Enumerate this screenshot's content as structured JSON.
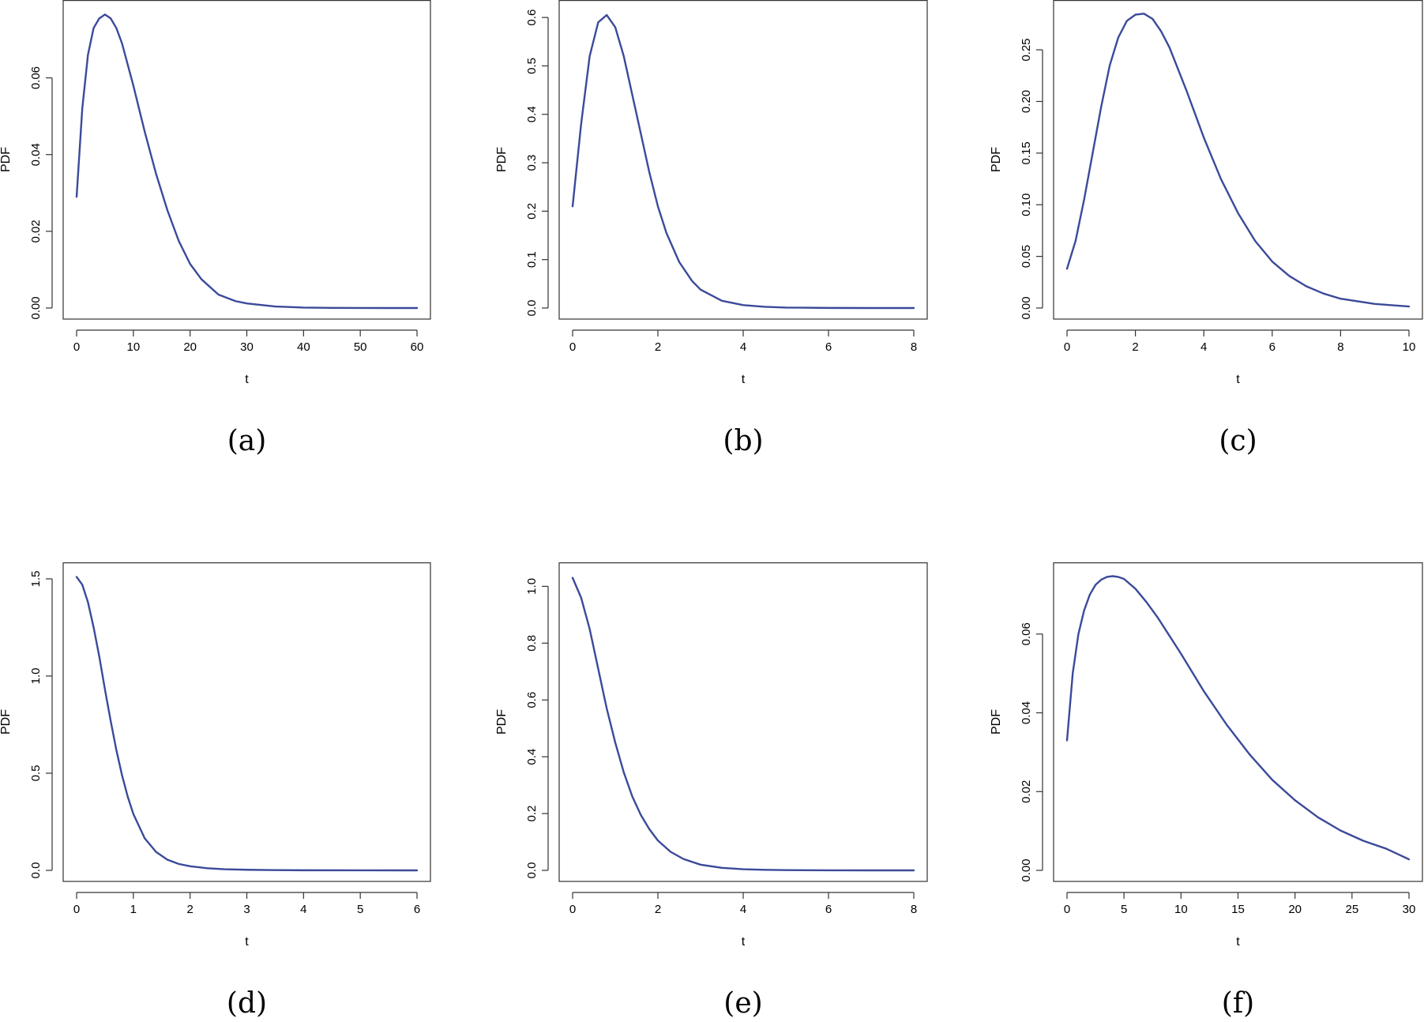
{
  "colors": {
    "curve": "#3b4a9a",
    "axis": "#333333"
  },
  "chart_data": [
    {
      "type": "line",
      "caption": "(a)",
      "xlabel": "t",
      "ylabel": "PDF",
      "xlim": [
        0,
        60
      ],
      "ylim": [
        0,
        0.077
      ],
      "xticks": [
        0,
        10,
        20,
        30,
        40,
        50,
        60
      ],
      "yticks": [
        0,
        0.02,
        0.04,
        0.06
      ],
      "xtick_labels": [
        "0",
        "10",
        "20",
        "30",
        "40",
        "50",
        "60"
      ],
      "ytick_labels": [
        "0.00",
        "0.02",
        "0.04",
        "0.06"
      ],
      "series": [
        {
          "x": [
            0,
            1,
            2,
            3,
            4,
            5,
            6,
            7,
            8,
            10,
            12,
            14,
            16,
            18,
            20,
            22,
            25,
            28,
            30,
            35,
            40,
            45,
            50,
            55,
            60
          ],
          "y": [
            0.029,
            0.052,
            0.066,
            0.073,
            0.0755,
            0.0765,
            0.0755,
            0.073,
            0.069,
            0.058,
            0.046,
            0.035,
            0.0255,
            0.0175,
            0.0115,
            0.0075,
            0.0035,
            0.0018,
            0.0012,
            0.0004,
            0.00012,
            4e-05,
            1e-05,
            0.0,
            0.0
          ]
        }
      ]
    },
    {
      "type": "line",
      "caption": "(b)",
      "xlabel": "t",
      "ylabel": "PDF",
      "xlim": [
        0,
        8
      ],
      "ylim": [
        0,
        0.61
      ],
      "xticks": [
        0,
        2,
        4,
        6,
        8
      ],
      "yticks": [
        0,
        0.1,
        0.2,
        0.3,
        0.4,
        0.5,
        0.6
      ],
      "xtick_labels": [
        "0",
        "2",
        "4",
        "6",
        "8"
      ],
      "ytick_labels": [
        "0.0",
        "0.1",
        "0.2",
        "0.3",
        "0.4",
        "0.5",
        "0.6"
      ],
      "series": [
        {
          "x": [
            0,
            0.2,
            0.4,
            0.6,
            0.8,
            1.0,
            1.2,
            1.4,
            1.6,
            1.8,
            2.0,
            2.2,
            2.5,
            2.8,
            3.0,
            3.5,
            4.0,
            4.5,
            5,
            6,
            7,
            8
          ],
          "y": [
            0.21,
            0.38,
            0.52,
            0.59,
            0.605,
            0.58,
            0.52,
            0.44,
            0.36,
            0.28,
            0.21,
            0.155,
            0.095,
            0.056,
            0.038,
            0.015,
            0.006,
            0.0025,
            0.001,
            0.0002,
            0.0,
            0.0
          ]
        }
      ]
    },
    {
      "type": "line",
      "caption": "(c)",
      "xlabel": "t",
      "ylabel": "PDF",
      "xlim": [
        0,
        10
      ],
      "ylim": [
        0,
        0.286
      ],
      "xticks": [
        0,
        2,
        4,
        6,
        8,
        10
      ],
      "yticks": [
        0,
        0.05,
        0.1,
        0.15,
        0.2,
        0.25
      ],
      "xtick_labels": [
        "0",
        "2",
        "4",
        "6",
        "8",
        "10"
      ],
      "ytick_labels": [
        "0.00",
        "0.05",
        "0.10",
        "0.15",
        "0.20",
        "0.25"
      ],
      "series": [
        {
          "x": [
            0,
            0.25,
            0.5,
            0.75,
            1.0,
            1.25,
            1.5,
            1.75,
            2.0,
            2.25,
            2.5,
            2.75,
            3.0,
            3.5,
            4.0,
            4.5,
            5.0,
            5.5,
            6.0,
            6.5,
            7.0,
            7.5,
            8.0,
            9.0,
            10.0
          ],
          "y": [
            0.038,
            0.065,
            0.105,
            0.15,
            0.195,
            0.235,
            0.262,
            0.278,
            0.284,
            0.285,
            0.28,
            0.268,
            0.252,
            0.21,
            0.165,
            0.125,
            0.092,
            0.065,
            0.045,
            0.031,
            0.021,
            0.014,
            0.009,
            0.004,
            0.0015
          ]
        }
      ]
    },
    {
      "type": "line",
      "caption": "(d)",
      "xlabel": "t",
      "ylabel": "PDF",
      "xlim": [
        0,
        6
      ],
      "ylim": [
        0,
        1.52
      ],
      "xticks": [
        0,
        1,
        2,
        3,
        4,
        5,
        6
      ],
      "yticks": [
        0,
        0.5,
        1.0,
        1.5
      ],
      "xtick_labels": [
        "0",
        "1",
        "2",
        "3",
        "4",
        "5",
        "6"
      ],
      "ytick_labels": [
        "0.0",
        "0.5",
        "1.0",
        "1.5"
      ],
      "series": [
        {
          "x": [
            0,
            0.1,
            0.2,
            0.3,
            0.4,
            0.5,
            0.6,
            0.7,
            0.8,
            0.9,
            1.0,
            1.2,
            1.4,
            1.6,
            1.8,
            2.0,
            2.3,
            2.6,
            3.0,
            3.5,
            4,
            5,
            6
          ],
          "y": [
            1.51,
            1.47,
            1.38,
            1.25,
            1.1,
            0.93,
            0.77,
            0.62,
            0.49,
            0.38,
            0.29,
            0.165,
            0.095,
            0.055,
            0.033,
            0.021,
            0.011,
            0.006,
            0.003,
            0.0012,
            0.0005,
            0.0001,
            0.0
          ]
        }
      ]
    },
    {
      "type": "line",
      "caption": "(e)",
      "xlabel": "t",
      "ylabel": "PDF",
      "xlim": [
        0,
        8
      ],
      "ylim": [
        0,
        1.04
      ],
      "xticks": [
        0,
        2,
        4,
        6,
        8
      ],
      "yticks": [
        0,
        0.2,
        0.4,
        0.6,
        0.8,
        1.0
      ],
      "xtick_labels": [
        "0",
        "2",
        "4",
        "6",
        "8"
      ],
      "ytick_labels": [
        "0.0",
        "0.2",
        "0.4",
        "0.6",
        "0.8",
        "1.0"
      ],
      "series": [
        {
          "x": [
            0,
            0.2,
            0.4,
            0.6,
            0.8,
            1.0,
            1.2,
            1.4,
            1.6,
            1.8,
            2.0,
            2.3,
            2.6,
            3.0,
            3.5,
            4.0,
            4.5,
            5,
            6,
            7,
            8
          ],
          "y": [
            1.03,
            0.96,
            0.85,
            0.71,
            0.57,
            0.45,
            0.345,
            0.26,
            0.195,
            0.145,
            0.105,
            0.065,
            0.04,
            0.02,
            0.009,
            0.004,
            0.0018,
            0.0008,
            0.0002,
            0.0,
            0.0
          ]
        }
      ]
    },
    {
      "type": "line",
      "caption": "(f)",
      "xlabel": "t",
      "ylabel": "PDF",
      "xlim": [
        0,
        30
      ],
      "ylim": [
        0,
        0.075
      ],
      "xticks": [
        0,
        5,
        10,
        15,
        20,
        25,
        30
      ],
      "yticks": [
        0,
        0.02,
        0.04,
        0.06
      ],
      "xtick_labels": [
        "0",
        "5",
        "10",
        "15",
        "20",
        "25",
        "30"
      ],
      "ytick_labels": [
        "0.00",
        "0.02",
        "0.04",
        "0.06"
      ],
      "series": [
        {
          "x": [
            0,
            0.5,
            1,
            1.5,
            2,
            2.5,
            3,
            3.5,
            4,
            4.5,
            5,
            6,
            7,
            8,
            9,
            10,
            12,
            14,
            16,
            18,
            20,
            22,
            24,
            26,
            28,
            30
          ],
          "y": [
            0.033,
            0.05,
            0.06,
            0.066,
            0.07,
            0.0725,
            0.0738,
            0.0745,
            0.0747,
            0.0745,
            0.074,
            0.0715,
            0.068,
            0.064,
            0.0595,
            0.055,
            0.0455,
            0.037,
            0.0295,
            0.023,
            0.0178,
            0.0135,
            0.0101,
            0.0075,
            0.0055,
            0.0028
          ]
        }
      ]
    }
  ]
}
